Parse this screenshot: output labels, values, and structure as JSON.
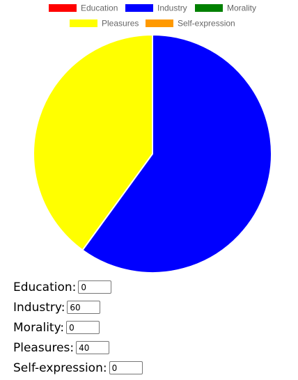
{
  "chart_data": {
    "type": "pie",
    "categories": [
      "Education",
      "Industry",
      "Morality",
      "Pleasures",
      "Self-expression"
    ],
    "values": [
      0,
      60,
      0,
      40,
      0
    ],
    "colors": [
      "#ff0000",
      "#0000ff",
      "#008000",
      "#ffff00",
      "#ff9900"
    ],
    "legend_position": "top",
    "title": ""
  },
  "form": {
    "fields": [
      {
        "label": "Education:",
        "value": "0"
      },
      {
        "label": "Industry:",
        "value": "60"
      },
      {
        "label": "Morality:",
        "value": "0"
      },
      {
        "label": "Pleasures:",
        "value": "40"
      },
      {
        "label": "Self-expression:",
        "value": "0"
      }
    ]
  }
}
